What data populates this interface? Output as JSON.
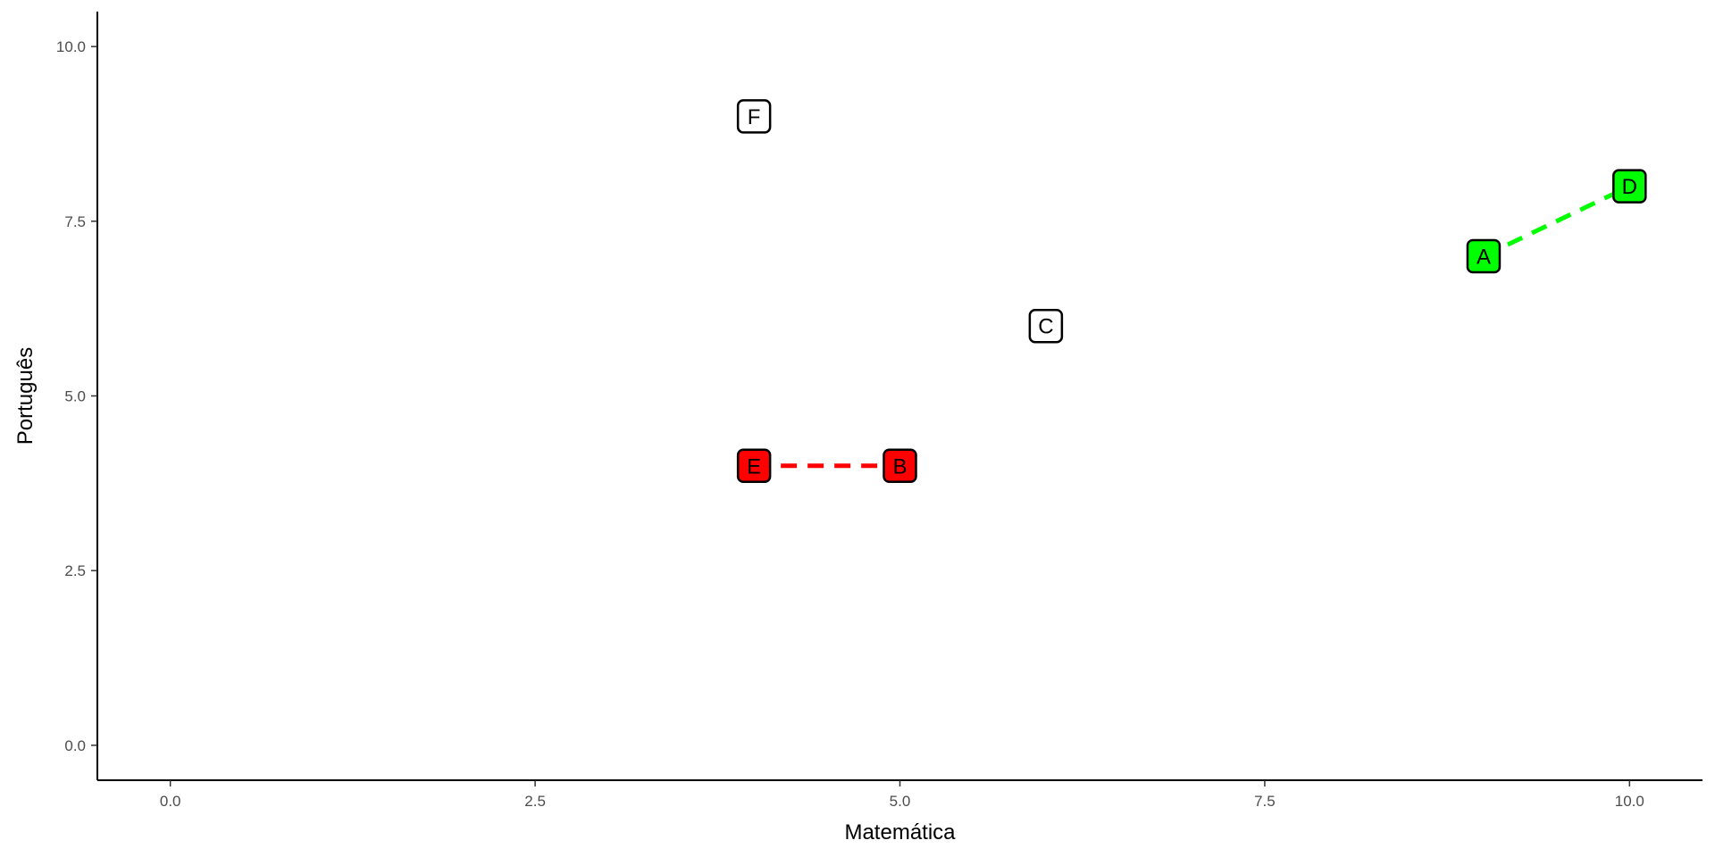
{
  "chart_data": {
    "type": "scatter",
    "xlabel": "Matemática",
    "ylabel": "Português",
    "xlim": [
      -0.5,
      10.5
    ],
    "ylim": [
      -0.5,
      10.5
    ],
    "x_ticks": [
      0,
      2.5,
      5,
      7.5,
      10
    ],
    "y_ticks": [
      0,
      2.5,
      5,
      7.5,
      10
    ],
    "x_tick_labels": [
      "0.0",
      "2.5",
      "5.0",
      "7.5",
      "10.0"
    ],
    "y_tick_labels": [
      "0.0",
      "2.5",
      "5.0",
      "7.5",
      "10.0"
    ],
    "grid": false,
    "points": [
      {
        "label": "A",
        "x": 9,
        "y": 7,
        "fill": "#00ff00"
      },
      {
        "label": "B",
        "x": 5,
        "y": 4,
        "fill": "#ff0000"
      },
      {
        "label": "C",
        "x": 6,
        "y": 6,
        "fill": "#ffffff"
      },
      {
        "label": "D",
        "x": 10,
        "y": 8,
        "fill": "#00ff00"
      },
      {
        "label": "E",
        "x": 4,
        "y": 4,
        "fill": "#ff0000"
      },
      {
        "label": "F",
        "x": 4,
        "y": 9,
        "fill": "#ffffff"
      }
    ],
    "connections": [
      {
        "from": "E",
        "to": "B",
        "color": "#ff0000",
        "style": "dashed"
      },
      {
        "from": "A",
        "to": "D",
        "color": "#00ff00",
        "style": "dashed"
      }
    ]
  }
}
